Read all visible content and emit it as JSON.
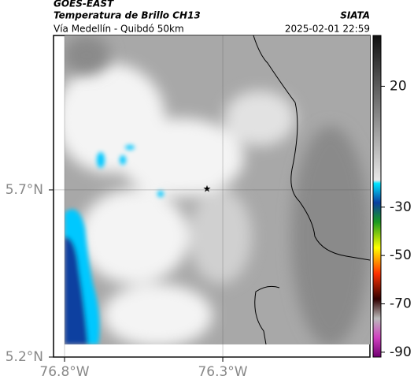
{
  "header": {
    "satellite": "GOES-EAST",
    "product": "Temperatura de Brillo CH13",
    "region": "Vía Medellín - Quibdó 50km",
    "source": "SIATA",
    "datetime": "2025-02-01 22:59"
  },
  "map": {
    "xlim": [
      -76.8,
      -75.835
    ],
    "ylim": [
      5.2,
      6.162
    ],
    "xticks": [
      {
        "value": -76.8,
        "label": "76.8°W"
      },
      {
        "value": -76.3,
        "label": "76.3°W"
      }
    ],
    "yticks": [
      {
        "value": 5.7,
        "label": "5.7°N"
      },
      {
        "value": 5.2,
        "label": "5.2°N"
      }
    ],
    "grid": true,
    "colorbar": {
      "clim": [
        -92,
        41
      ],
      "ticks": [
        20,
        -30,
        -50,
        -70,
        -90
      ]
    }
  }
}
